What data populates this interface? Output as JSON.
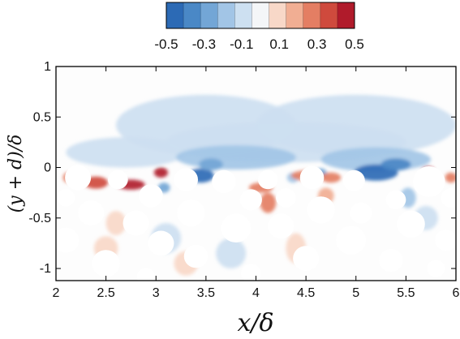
{
  "chart_data": {
    "type": "heatmap",
    "title": "",
    "xlabel": "x/δ",
    "ylabel": "(y + d)/δ",
    "xlim": [
      2,
      6
    ],
    "ylim": [
      -1.12,
      1
    ],
    "x_ticks": [
      "2",
      "2.5",
      "3",
      "3.5",
      "4",
      "4.5",
      "5",
      "5.5",
      "6"
    ],
    "y_ticks": [
      "-1",
      "-0.5",
      "0",
      "0.5",
      "1"
    ],
    "colorbar": {
      "range": [
        -0.5,
        0.5
      ],
      "levels": 11,
      "tick_labels": [
        "-0.5",
        "-0.3",
        "-0.1",
        "0.1",
        "0.3",
        "0.5"
      ],
      "colormap": [
        "#2c6ab5",
        "#4a88c6",
        "#73a6d6",
        "#a2c5e6",
        "#cde0f1",
        "#f4f6f8",
        "#f8d8c8",
        "#f1ae93",
        "#e47e63",
        "#cf4a3d",
        "#b01b2b"
      ]
    },
    "regions": [
      {
        "x": 3.5,
        "y": 0.42,
        "value": -0.13,
        "sx": 0.9,
        "sy": 0.3
      },
      {
        "x": 5.0,
        "y": 0.42,
        "value": -0.13,
        "sx": 1.0,
        "sy": 0.3
      },
      {
        "x": 4.3,
        "y": 0.25,
        "value": -0.12,
        "sx": 1.2,
        "sy": 0.2
      },
      {
        "x": 2.7,
        "y": 0.15,
        "value": -0.15,
        "sx": 0.6,
        "sy": 0.15
      },
      {
        "x": 3.8,
        "y": 0.1,
        "value": -0.2,
        "sx": 0.6,
        "sy": 0.12
      },
      {
        "x": 5.2,
        "y": 0.08,
        "value": -0.22,
        "sx": 0.55,
        "sy": 0.12
      },
      {
        "x": 3.45,
        "y": -0.08,
        "value": -0.5,
        "sx": 0.13,
        "sy": 0.07
      },
      {
        "x": 3.55,
        "y": 0.03,
        "value": -0.35,
        "sx": 0.12,
        "sy": 0.06
      },
      {
        "x": 5.2,
        "y": -0.05,
        "value": -0.5,
        "sx": 0.22,
        "sy": 0.08
      },
      {
        "x": 5.4,
        "y": 0.03,
        "value": -0.4,
        "sx": 0.15,
        "sy": 0.06
      },
      {
        "x": 3.08,
        "y": -0.2,
        "value": -0.35,
        "sx": 0.06,
        "sy": 0.05
      },
      {
        "x": 4.65,
        "y": -0.06,
        "value": -0.3,
        "sx": 0.06,
        "sy": 0.05
      },
      {
        "x": 2.23,
        "y": -0.08,
        "value": -0.35,
        "sx": 0.05,
        "sy": 0.04
      },
      {
        "x": 4.37,
        "y": -0.1,
        "value": -0.25,
        "sx": 0.06,
        "sy": 0.05
      },
      {
        "x": 5.52,
        "y": -0.3,
        "value": -0.25,
        "sx": 0.08,
        "sy": 0.1
      },
      {
        "x": 3.1,
        "y": -0.7,
        "value": -0.15,
        "sx": 0.15,
        "sy": 0.15
      },
      {
        "x": 3.75,
        "y": -0.85,
        "value": -0.12,
        "sx": 0.15,
        "sy": 0.15
      },
      {
        "x": 5.7,
        "y": -0.5,
        "value": -0.12,
        "sx": 0.12,
        "sy": 0.12
      },
      {
        "x": 2.4,
        "y": -0.15,
        "value": 0.35,
        "sx": 0.12,
        "sy": 0.06
      },
      {
        "x": 2.75,
        "y": -0.17,
        "value": 0.5,
        "sx": 0.14,
        "sy": 0.05
      },
      {
        "x": 3.05,
        "y": -0.05,
        "value": 0.5,
        "sx": 0.07,
        "sy": 0.05
      },
      {
        "x": 2.12,
        "y": -0.1,
        "value": 0.3,
        "sx": 0.05,
        "sy": 0.05
      },
      {
        "x": 4.05,
        "y": -0.2,
        "value": 0.3,
        "sx": 0.12,
        "sy": 0.05
      },
      {
        "x": 4.5,
        "y": -0.08,
        "value": 0.25,
        "sx": 0.15,
        "sy": 0.05
      },
      {
        "x": 4.75,
        "y": -0.1,
        "value": 0.3,
        "sx": 0.1,
        "sy": 0.05
      },
      {
        "x": 5.72,
        "y": -0.03,
        "value": 0.5,
        "sx": 0.06,
        "sy": 0.04
      },
      {
        "x": 5.95,
        "y": -0.1,
        "value": 0.3,
        "sx": 0.06,
        "sy": 0.05
      },
      {
        "x": 4.12,
        "y": -0.35,
        "value": 0.25,
        "sx": 0.08,
        "sy": 0.1
      },
      {
        "x": 4.7,
        "y": -0.28,
        "value": 0.2,
        "sx": 0.08,
        "sy": 0.08
      },
      {
        "x": 2.6,
        "y": -0.55,
        "value": 0.12,
        "sx": 0.1,
        "sy": 0.12
      },
      {
        "x": 2.5,
        "y": -0.8,
        "value": 0.1,
        "sx": 0.12,
        "sy": 0.12
      },
      {
        "x": 3.3,
        "y": -0.95,
        "value": 0.1,
        "sx": 0.12,
        "sy": 0.12
      },
      {
        "x": 4.4,
        "y": -0.8,
        "value": 0.1,
        "sx": 0.1,
        "sy": 0.15
      }
    ],
    "particles": [
      {
        "x": 2.22,
        "y": -0.1,
        "r": 0.13
      },
      {
        "x": 2.62,
        "y": -0.12,
        "r": 0.1
      },
      {
        "x": 3.3,
        "y": -0.12,
        "r": 0.12
      },
      {
        "x": 3.68,
        "y": -0.14,
        "r": 0.12
      },
      {
        "x": 4.12,
        "y": -0.12,
        "r": 0.1
      },
      {
        "x": 4.56,
        "y": -0.1,
        "r": 0.12
      },
      {
        "x": 4.98,
        "y": -0.13,
        "r": 0.11
      },
      {
        "x": 5.73,
        "y": -0.14,
        "r": 0.16
      },
      {
        "x": 2.1,
        "y": -0.3,
        "r": 0.09
      },
      {
        "x": 2.95,
        "y": -0.28,
        "r": 0.12
      },
      {
        "x": 3.95,
        "y": -0.32,
        "r": 0.11
      },
      {
        "x": 4.3,
        "y": -0.3,
        "r": 0.1
      },
      {
        "x": 5.4,
        "y": -0.32,
        "r": 0.1
      },
      {
        "x": 5.95,
        "y": -0.3,
        "r": 0.1
      },
      {
        "x": 2.35,
        "y": -0.45,
        "r": 0.13
      },
      {
        "x": 3.35,
        "y": -0.45,
        "r": 0.14
      },
      {
        "x": 4.65,
        "y": -0.42,
        "r": 0.14
      },
      {
        "x": 5.05,
        "y": -0.45,
        "r": 0.11
      },
      {
        "x": 2.8,
        "y": -0.55,
        "r": 0.13
      },
      {
        "x": 3.8,
        "y": -0.6,
        "r": 0.15
      },
      {
        "x": 4.25,
        "y": -0.58,
        "r": 0.13
      },
      {
        "x": 5.55,
        "y": -0.56,
        "r": 0.14
      },
      {
        "x": 2.1,
        "y": -0.72,
        "r": 0.13
      },
      {
        "x": 3.05,
        "y": -0.75,
        "r": 0.13
      },
      {
        "x": 4.95,
        "y": -0.72,
        "r": 0.15
      },
      {
        "x": 5.9,
        "y": -0.72,
        "r": 0.11
      },
      {
        "x": 2.5,
        "y": -0.95,
        "r": 0.14
      },
      {
        "x": 3.4,
        "y": -0.88,
        "r": 0.12
      },
      {
        "x": 4.5,
        "y": -0.9,
        "r": 0.13
      },
      {
        "x": 5.35,
        "y": -0.92,
        "r": 0.12
      },
      {
        "x": 3.95,
        "y": -1.05,
        "r": 0.1
      },
      {
        "x": 5.8,
        "y": -1.0,
        "r": 0.09
      },
      {
        "x": 2.9,
        "y": -1.08,
        "r": 0.09
      }
    ]
  }
}
